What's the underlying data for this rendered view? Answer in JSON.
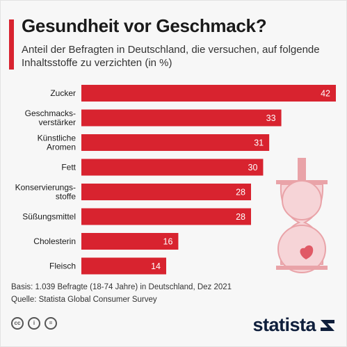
{
  "header": {
    "title": "Gesundheit vor Geschmack?",
    "subtitle": "Anteil der Befragten in Deutschland, die versuchen, auf folgende Inhaltsstoffe zu verzichten (in %)"
  },
  "chart_data": {
    "type": "bar",
    "orientation": "horizontal",
    "categories": [
      "Zucker",
      "Geschmacks-\nverstärker",
      "Künstliche\nAromen",
      "Fett",
      "Konservierungs-\nstoffe",
      "Süßungsmittel",
      "Cholesterin",
      "Fleisch"
    ],
    "values": [
      42,
      33,
      31,
      30,
      28,
      28,
      16,
      14
    ],
    "title": "Gesundheit vor Geschmack?",
    "subtitle": "Anteil der Befragten in Deutschland, die versuchen, auf folgende Inhaltsstoffe zu verzichten (in %)",
    "xlim": [
      0,
      42
    ],
    "grid": false,
    "data_labels": true
  },
  "footer": {
    "basis": "Basis: 1.039 Befragte (18-74 Jahre) in Deutschland, Dez 2021",
    "quelle": "Quelle: Statista Global Consumer Survey",
    "license_icons": [
      "cc",
      "i",
      "="
    ],
    "brand": "statista"
  },
  "colors": {
    "bar": "#d8232f",
    "accent": "#d8232f",
    "illustration": "#e9a3a8",
    "illustration_light": "#f6d4d7",
    "brand": "#0f1f3c"
  }
}
